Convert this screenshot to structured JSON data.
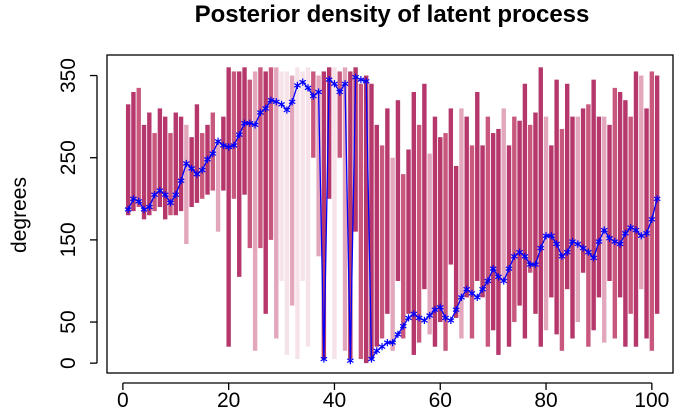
{
  "chart_data": {
    "type": "interval-line",
    "title": "Posterior density of latent process",
    "y_label": "degrees",
    "x": [
      1,
      2,
      3,
      4,
      5,
      6,
      7,
      8,
      9,
      10,
      11,
      12,
      13,
      14,
      15,
      16,
      17,
      18,
      19,
      20,
      21,
      22,
      23,
      24,
      25,
      26,
      27,
      28,
      29,
      30,
      31,
      32,
      33,
      34,
      35,
      36,
      37,
      38,
      39,
      40,
      41,
      42,
      43,
      44,
      45,
      46,
      47,
      48,
      49,
      50,
      51,
      52,
      53,
      54,
      55,
      56,
      57,
      58,
      59,
      60,
      61,
      62,
      63,
      64,
      65,
      66,
      67,
      68,
      69,
      70,
      71,
      72,
      73,
      74,
      75,
      76,
      77,
      78,
      79,
      80,
      81,
      82,
      83,
      84,
      85,
      86,
      87,
      88,
      89,
      90,
      91,
      92,
      93,
      94,
      95,
      96,
      97,
      98,
      99,
      100,
      101
    ],
    "bars": {
      "low": [
        180,
        185,
        190,
        175,
        180,
        185,
        190,
        175,
        180,
        180,
        185,
        145,
        190,
        195,
        200,
        205,
        210,
        160,
        210,
        20,
        200,
        105,
        205,
        140,
        15,
        140,
        60,
        150,
        30,
        100,
        10,
        70,
        5,
        100,
        20,
        250,
        130,
        5,
        200,
        5,
        250,
        15,
        5,
        160,
        5,
        0,
        5,
        20,
        30,
        60,
        15,
        100,
        30,
        60,
        10,
        25,
        90,
        35,
        20,
        50,
        15,
        120,
        55,
        30,
        80,
        30,
        100,
        80,
        20,
        40,
        10,
        100,
        20,
        50,
        70,
        30,
        110,
        60,
        20,
        40,
        80,
        35,
        15,
        90,
        30,
        50,
        110,
        20,
        40,
        80,
        25,
        100,
        30,
        80,
        20,
        60,
        20,
        90,
        30,
        15,
        60
      ],
      "high": [
        315,
        330,
        335,
        290,
        305,
        280,
        310,
        300,
        280,
        305,
        300,
        290,
        275,
        315,
        280,
        290,
        305,
        270,
        300,
        360,
        355,
        355,
        360,
        345,
        355,
        360,
        355,
        360,
        360,
        355,
        355,
        350,
        360,
        355,
        360,
        355,
        350,
        355,
        360,
        360,
        355,
        360,
        355,
        360,
        340,
        350,
        340,
        290,
        265,
        310,
        250,
        320,
        230,
        260,
        330,
        290,
        340,
        255,
        300,
        275,
        280,
        310,
        240,
        310,
        300,
        265,
        330,
        265,
        300,
        280,
        285,
        310,
        265,
        300,
        295,
        340,
        290,
        305,
        360,
        300,
        265,
        345,
        285,
        340,
        300,
        300,
        310,
        315,
        345,
        300,
        300,
        290,
        335,
        330,
        320,
        300,
        355,
        350,
        310,
        355,
        350
      ],
      "colors": [
        "#b5376b",
        "#b5376b",
        "#c9587f",
        "#b5376b",
        "#b5376b",
        "#c9587f",
        "#b5376b",
        "#b5376b",
        "#c9587f",
        "#b5376b",
        "#b5376b",
        "#e3a7bd",
        "#b5376b",
        "#b5376b",
        "#c9587f",
        "#b5376b",
        "#c9587f",
        "#e3a7bd",
        "#b5376b",
        "#b5376b",
        "#c9587f",
        "#b5376b",
        "#b5376b",
        "#c9587f",
        "#e3a7bd",
        "#c9587f",
        "#b5376b",
        "#c9587f",
        "#e3a7bd",
        "#f6e3ea",
        "#f6e3ea",
        "#e3a7bd",
        "#f6e3ea",
        "#f6e3ea",
        "#f6e3ea",
        "#c9587f",
        "#e3a7bd",
        "#b5376b",
        "#b5376b",
        "#f6e3ea",
        "#c9587f",
        "#e3a7bd",
        "#b5376b",
        "#b5376b",
        "#c9587f",
        "#b5376b",
        "#b5376b",
        "#b5376b",
        "#c9587f",
        "#b5376b",
        "#e3a7bd",
        "#b5376b",
        "#c9587f",
        "#b5376b",
        "#b5376b",
        "#c9587f",
        "#b5376b",
        "#e3a7bd",
        "#b5376b",
        "#b5376b",
        "#c9587f",
        "#b5376b",
        "#b5376b",
        "#e3a7bd",
        "#b5376b",
        "#c9587f",
        "#b5376b",
        "#b5376b",
        "#c9587f",
        "#b5376b",
        "#b5376b",
        "#e3a7bd",
        "#b5376b",
        "#c9587f",
        "#b5376b",
        "#b5376b",
        "#c9587f",
        "#b5376b",
        "#b5376b",
        "#e3a7bd",
        "#b5376b",
        "#b5376b",
        "#c9587f",
        "#b5376b",
        "#b5376b",
        "#e3a7bd",
        "#b5376b",
        "#c9587f",
        "#b5376b",
        "#b5376b",
        "#e3a7bd",
        "#b5376b",
        "#c9587f",
        "#b5376b",
        "#b5376b",
        "#c9587f",
        "#b5376b",
        "#e3a7bd",
        "#b5376b",
        "#c9587f",
        "#b5376b"
      ]
    },
    "line": {
      "color": "#0000ff",
      "values": [
        187,
        200,
        197,
        187,
        190,
        205,
        210,
        205,
        195,
        205,
        222,
        243,
        237,
        230,
        235,
        248,
        255,
        270,
        265,
        263,
        265,
        278,
        292,
        292,
        290,
        305,
        310,
        320,
        318,
        315,
        308,
        318,
        338,
        342,
        335,
        325,
        330,
        5,
        345,
        340,
        330,
        340,
        3,
        348,
        345,
        343,
        5,
        15,
        20,
        25,
        25,
        35,
        45,
        55,
        60,
        55,
        52,
        58,
        65,
        68,
        55,
        52,
        65,
        80,
        90,
        85,
        80,
        90,
        100,
        115,
        105,
        100,
        115,
        130,
        135,
        130,
        120,
        120,
        140,
        155,
        155,
        145,
        130,
        135,
        148,
        145,
        140,
        135,
        128,
        148,
        162,
        152,
        148,
        145,
        158,
        165,
        162,
        155,
        158,
        175,
        200
      ]
    },
    "xlim": [
      -3,
      104
    ],
    "ylim": [
      -12,
      375
    ],
    "xticks": [
      0,
      20,
      40,
      60,
      80,
      100
    ],
    "yticks": [
      0,
      50,
      150,
      250,
      350
    ]
  }
}
